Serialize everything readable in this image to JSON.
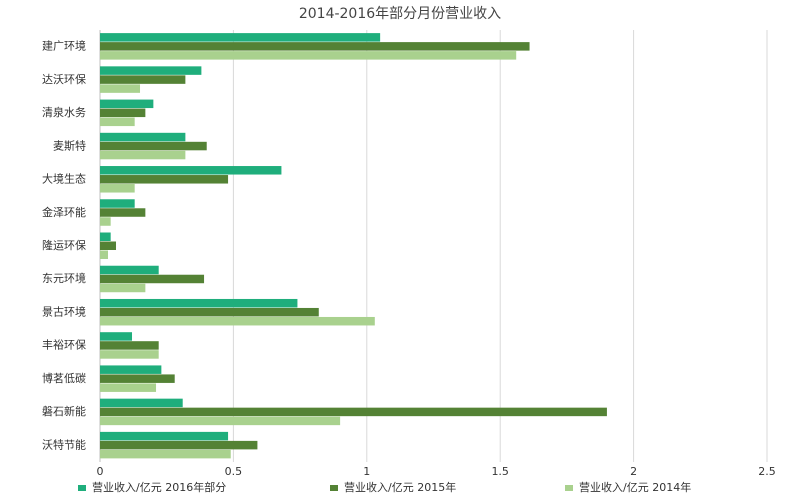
{
  "chart_data": {
    "type": "hbar",
    "title": "2014-2016年部分月份营业收入",
    "categories": [
      "建广环境",
      "达沃环保",
      "清泉水务",
      "麦斯特",
      "大境生态",
      "金泽环能",
      "隆运环保",
      "东元环境",
      "景古环境",
      "丰裕环保",
      "博茗低碳",
      "磐石新能",
      "沃特节能"
    ],
    "series": [
      {
        "name": "营业收入/亿元 2016年部分",
        "color": "#1fae7c",
        "values": [
          1.05,
          0.38,
          0.2,
          0.32,
          0.68,
          0.13,
          0.04,
          0.22,
          0.74,
          0.12,
          0.23,
          0.31,
          0.48
        ]
      },
      {
        "name": "营业收入/亿元 2015年",
        "color": "#548235",
        "values": [
          1.61,
          0.32,
          0.17,
          0.4,
          0.48,
          0.17,
          0.06,
          0.39,
          0.82,
          0.22,
          0.28,
          1.9,
          0.59
        ]
      },
      {
        "name": "营业收入/亿元 2014年",
        "color": "#a9d18e",
        "values": [
          1.56,
          0.15,
          0.13,
          0.32,
          0.13,
          0.04,
          0.03,
          0.17,
          1.03,
          0.22,
          0.21,
          0.9,
          0.49
        ]
      }
    ],
    "xlim": [
      0,
      2.5
    ],
    "xticks": [
      0,
      0.5,
      1,
      1.5,
      2,
      2.5
    ],
    "grid": true
  }
}
